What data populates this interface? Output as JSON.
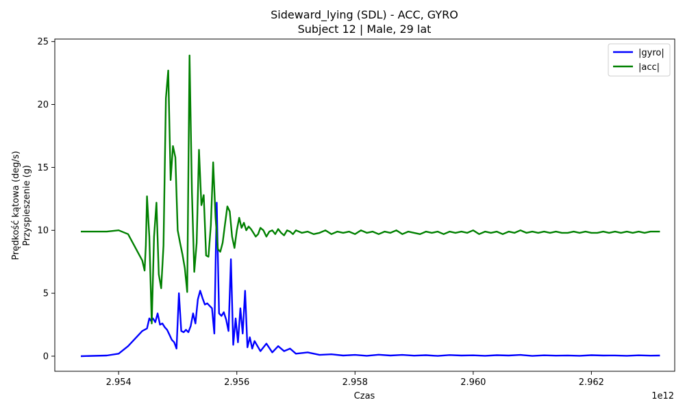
{
  "chart_data": {
    "type": "line",
    "title": "Sideward_lying (SDL) - ACC, GYRO",
    "subtitle": "Subject 12 | Male, 29 lat",
    "xlabel": "Czas",
    "ylabel_line1": "Prędkość kątowa (deg/s)",
    "ylabel_line2": "Przyspieszenie (g)",
    "x_offset_label": "1e12",
    "xlim": [
      2.95292,
      2.96341
    ],
    "ylim": [
      -1.2,
      25.2
    ],
    "x_ticks": [
      2.954,
      2.956,
      2.958,
      2.96,
      2.962
    ],
    "x_tick_labels": [
      "2.954",
      "2.956",
      "2.958",
      "2.960",
      "2.962"
    ],
    "y_ticks": [
      0,
      5,
      10,
      15,
      20,
      25
    ],
    "y_tick_labels": [
      "0",
      "5",
      "10",
      "15",
      "20",
      "25"
    ],
    "grid": false,
    "legend_position": "top-right",
    "series": [
      {
        "name": "|gyro|",
        "color": "#0000ff",
        "x": [
          2.95336,
          2.9538,
          2.954,
          2.95416,
          2.9544,
          2.95448,
          2.95452,
          2.95455,
          2.95458,
          2.95462,
          2.95466,
          2.9547,
          2.95474,
          2.95478,
          2.95482,
          2.95486,
          2.9549,
          2.95494,
          2.95498,
          2.95502,
          2.95506,
          2.9551,
          2.95514,
          2.95518,
          2.95522,
          2.95526,
          2.9553,
          2.95534,
          2.95538,
          2.95542,
          2.95546,
          2.9555,
          2.95554,
          2.95558,
          2.95562,
          2.95566,
          2.9557,
          2.95574,
          2.95578,
          2.95582,
          2.95586,
          2.9559,
          2.95594,
          2.95598,
          2.95602,
          2.95606,
          2.9561,
          2.95614,
          2.95618,
          2.95622,
          2.95626,
          2.9563,
          2.9564,
          2.9565,
          2.9566,
          2.9567,
          2.9568,
          2.9569,
          2.957,
          2.9572,
          2.9574,
          2.9576,
          2.9578,
          2.958,
          2.9582,
          2.9584,
          2.9586,
          2.9588,
          2.959,
          2.9592,
          2.9594,
          2.9596,
          2.9598,
          2.96,
          2.9602,
          2.9604,
          2.9606,
          2.9608,
          2.961,
          2.9612,
          2.9614,
          2.9616,
          2.9618,
          2.962,
          2.9622,
          2.9624,
          2.9626,
          2.9628,
          2.963,
          2.96316
        ],
        "y": [
          0.0,
          0.05,
          0.2,
          0.8,
          2.0,
          2.2,
          3.0,
          2.8,
          3.0,
          2.7,
          3.4,
          2.5,
          2.6,
          2.3,
          2.1,
          1.7,
          1.3,
          1.1,
          0.6,
          5.0,
          2.0,
          1.9,
          2.1,
          1.9,
          2.4,
          3.4,
          2.6,
          4.5,
          5.2,
          4.6,
          4.1,
          4.2,
          4.0,
          3.8,
          1.8,
          12.2,
          3.4,
          3.2,
          3.5,
          2.9,
          2.0,
          7.7,
          0.9,
          3.0,
          1.1,
          3.8,
          1.8,
          5.2,
          0.7,
          1.5,
          0.6,
          1.2,
          0.4,
          1.0,
          0.3,
          0.8,
          0.4,
          0.6,
          0.2,
          0.3,
          0.1,
          0.15,
          0.05,
          0.1,
          0.03,
          0.12,
          0.05,
          0.1,
          0.04,
          0.08,
          0.02,
          0.09,
          0.05,
          0.07,
          0.03,
          0.08,
          0.05,
          0.1,
          0.02,
          0.07,
          0.04,
          0.06,
          0.03,
          0.08,
          0.05,
          0.06,
          0.03,
          0.07,
          0.04,
          0.05
        ]
      },
      {
        "name": "|acc|",
        "color": "#008000",
        "x": [
          2.95336,
          2.9538,
          2.954,
          2.95416,
          2.9544,
          2.95444,
          2.95446,
          2.95448,
          2.95452,
          2.95456,
          2.9546,
          2.95464,
          2.95468,
          2.95472,
          2.95476,
          2.9548,
          2.95484,
          2.95488,
          2.95492,
          2.95496,
          2.955,
          2.95504,
          2.95508,
          2.95512,
          2.95516,
          2.9552,
          2.95524,
          2.95528,
          2.95532,
          2.95536,
          2.9554,
          2.95544,
          2.95548,
          2.95552,
          2.95556,
          2.9556,
          2.95564,
          2.95568,
          2.95572,
          2.95576,
          2.9558,
          2.95584,
          2.95588,
          2.95592,
          2.95596,
          2.956,
          2.95604,
          2.95608,
          2.95612,
          2.95616,
          2.9562,
          2.95624,
          2.95628,
          2.95632,
          2.95636,
          2.9564,
          2.95645,
          2.9565,
          2.95655,
          2.9566,
          2.95665,
          2.9567,
          2.95675,
          2.9568,
          2.95685,
          2.9569,
          2.95695,
          2.957,
          2.9571,
          2.9572,
          2.9573,
          2.9574,
          2.9575,
          2.9576,
          2.9577,
          2.9578,
          2.9579,
          2.958,
          2.9581,
          2.9582,
          2.9583,
          2.9584,
          2.9585,
          2.9586,
          2.9587,
          2.9588,
          2.9589,
          2.959,
          2.9591,
          2.9592,
          2.9593,
          2.9594,
          2.9595,
          2.9596,
          2.9597,
          2.9598,
          2.9599,
          2.96,
          2.9601,
          2.9602,
          2.9603,
          2.9604,
          2.9605,
          2.9606,
          2.9607,
          2.9608,
          2.9609,
          2.961,
          2.9611,
          2.9612,
          2.9613,
          2.9614,
          2.9615,
          2.9616,
          2.9617,
          2.9618,
          2.9619,
          2.962,
          2.9621,
          2.9622,
          2.9623,
          2.9624,
          2.9625,
          2.9626,
          2.9627,
          2.9628,
          2.9629,
          2.963,
          2.96316
        ],
        "y": [
          9.9,
          9.9,
          10.0,
          9.7,
          7.6,
          6.8,
          8.8,
          12.7,
          9.5,
          2.6,
          9.5,
          12.2,
          6.5,
          5.4,
          8.8,
          20.5,
          22.7,
          14.0,
          16.7,
          15.8,
          10.0,
          9.0,
          8.1,
          7.0,
          5.1,
          23.9,
          13.0,
          6.7,
          9.0,
          16.4,
          12.0,
          12.8,
          8.0,
          7.9,
          10.4,
          15.4,
          11.0,
          8.5,
          8.3,
          9.0,
          10.5,
          11.9,
          11.5,
          9.5,
          8.6,
          10.0,
          11.0,
          10.2,
          10.6,
          10.0,
          10.3,
          10.1,
          9.8,
          9.5,
          9.7,
          10.2,
          10.0,
          9.5,
          9.9,
          10.0,
          9.7,
          10.1,
          9.8,
          9.6,
          10.0,
          9.9,
          9.7,
          10.0,
          9.8,
          9.9,
          9.7,
          9.8,
          10.0,
          9.7,
          9.9,
          9.8,
          9.9,
          9.7,
          10.0,
          9.8,
          9.9,
          9.7,
          9.9,
          9.8,
          10.0,
          9.7,
          9.9,
          9.8,
          9.7,
          9.9,
          9.8,
          9.9,
          9.7,
          9.9,
          9.8,
          9.9,
          9.8,
          10.0,
          9.7,
          9.9,
          9.8,
          9.9,
          9.7,
          9.9,
          9.8,
          10.0,
          9.8,
          9.9,
          9.8,
          9.9,
          9.8,
          9.9,
          9.8,
          9.8,
          9.9,
          9.8,
          9.9,
          9.8,
          9.8,
          9.9,
          9.8,
          9.9,
          9.8,
          9.9,
          9.8,
          9.9,
          9.8,
          9.9,
          9.9
        ]
      }
    ]
  }
}
